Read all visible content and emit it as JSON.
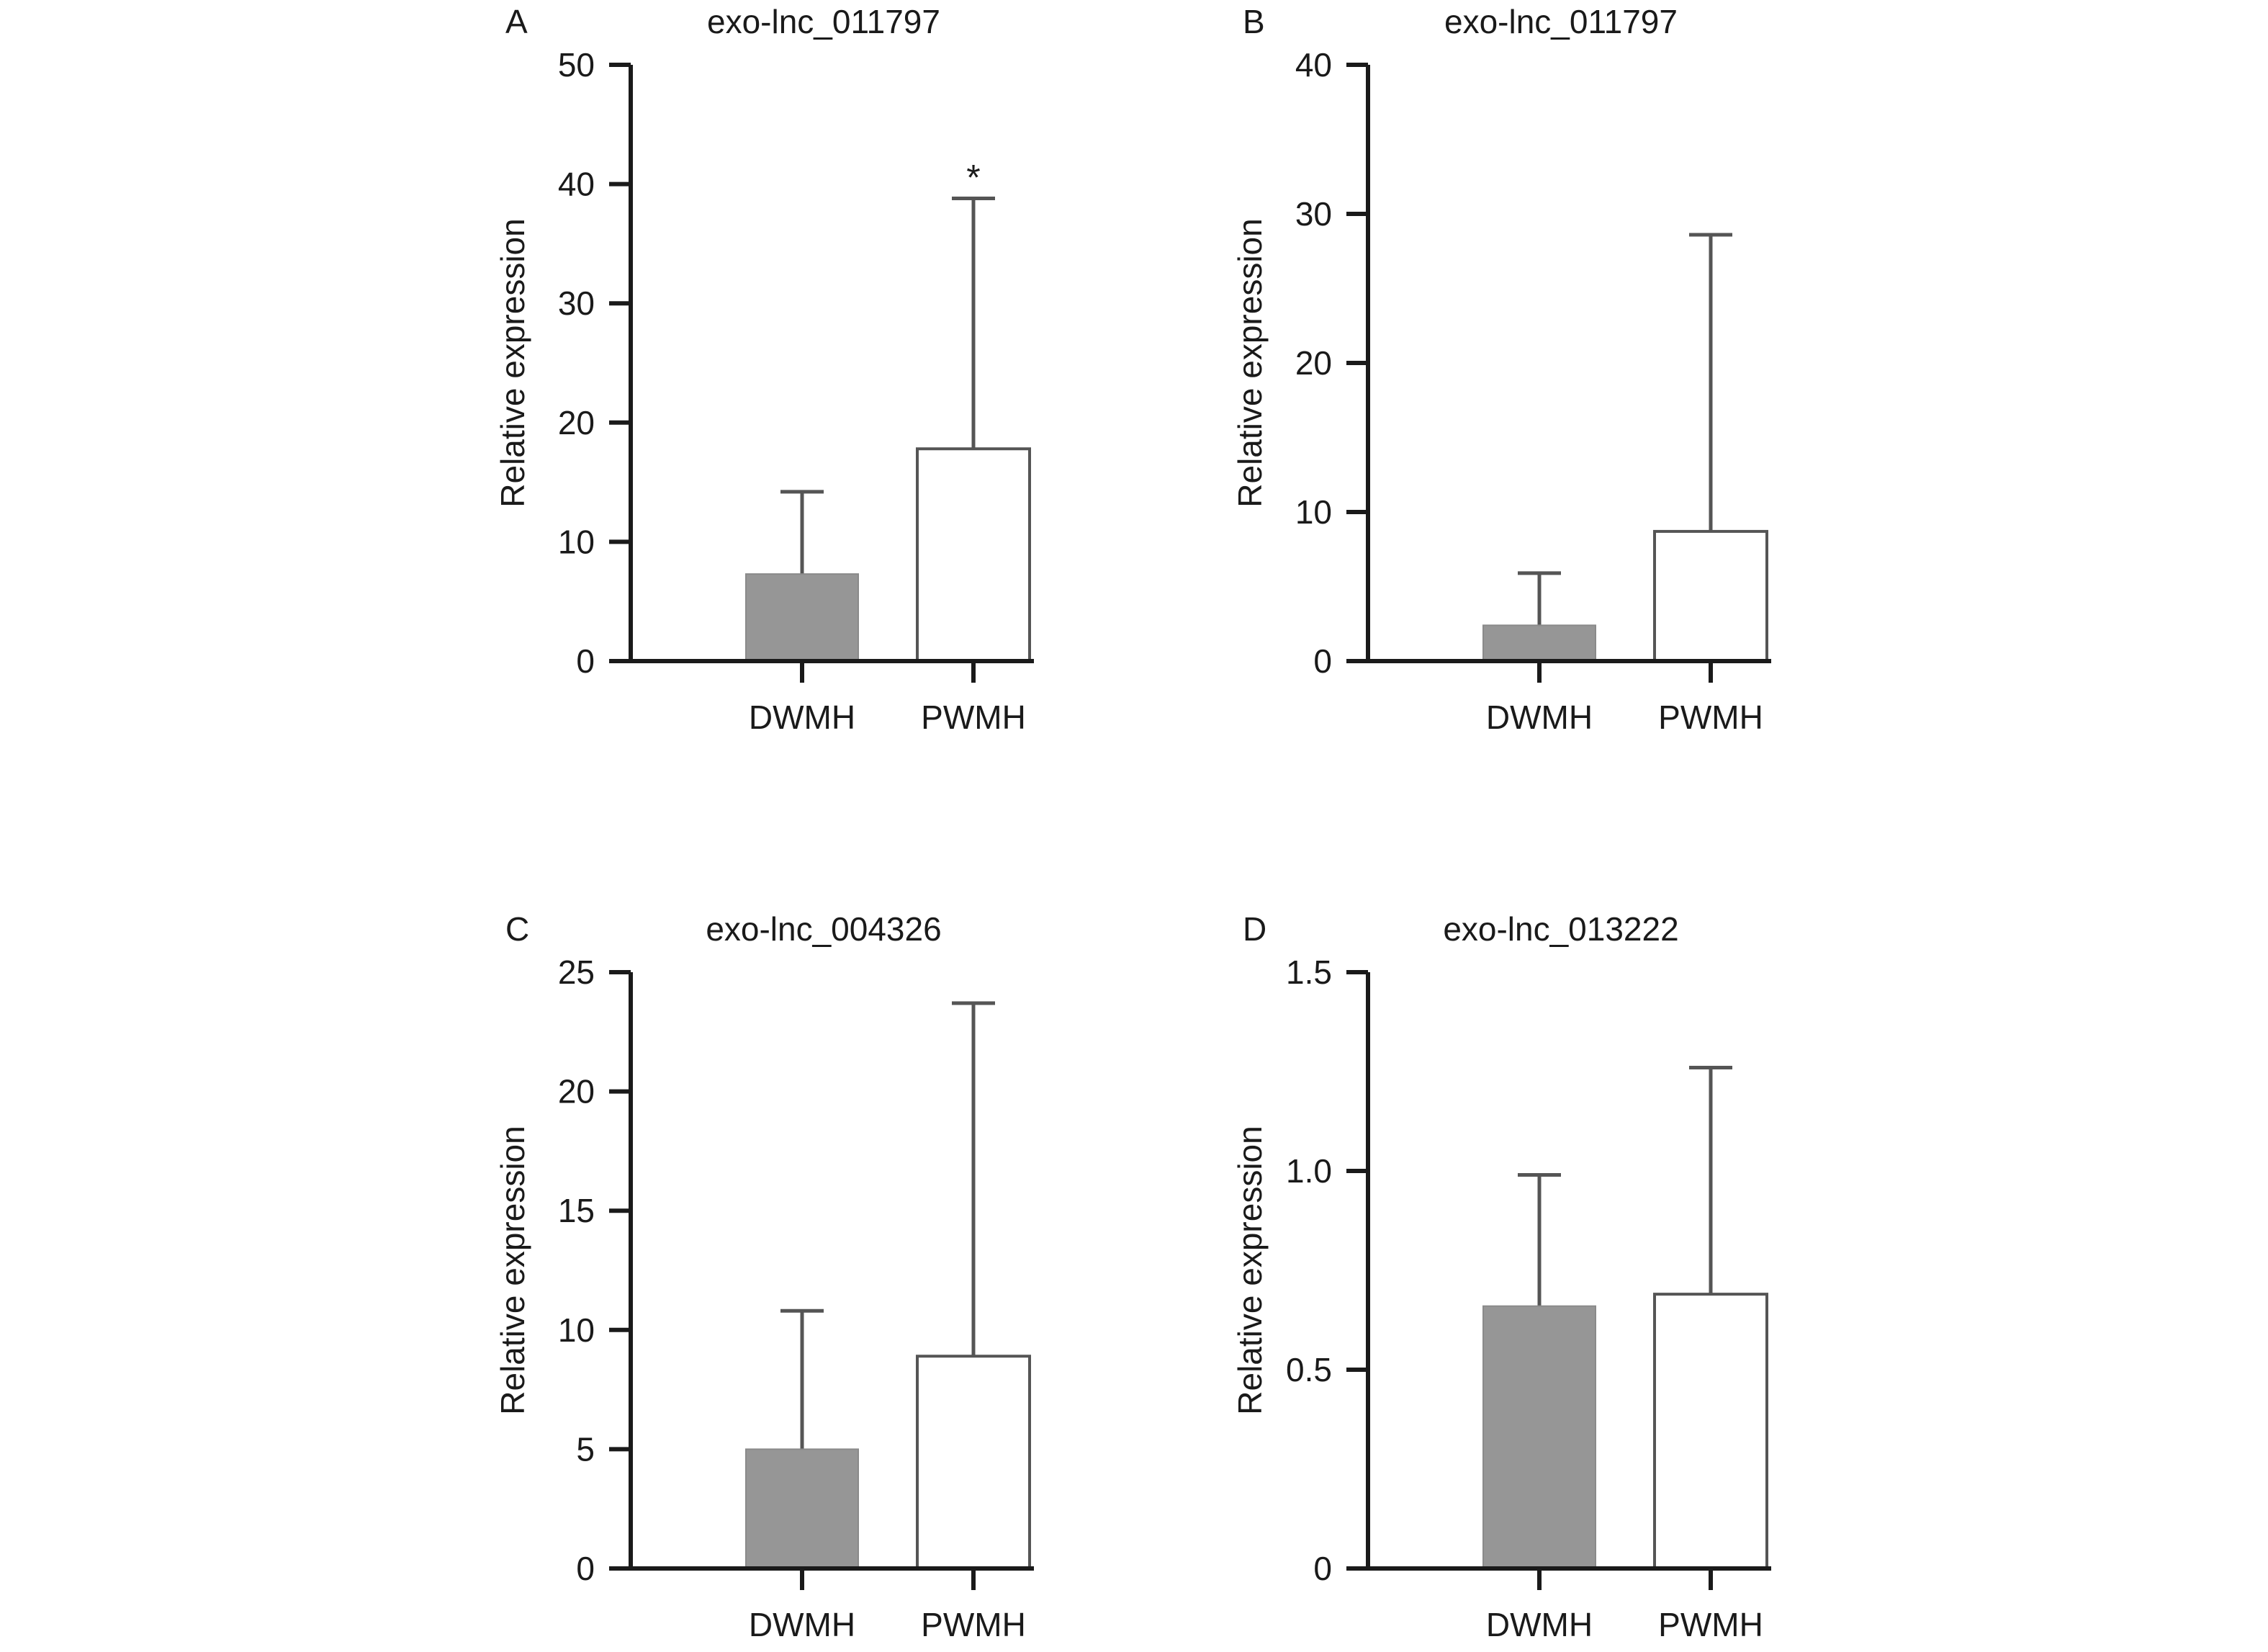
{
  "chart_data": [
    {
      "panel": "A",
      "type": "bar",
      "title": "exo-lnc_011797",
      "ylabel": "Relative expression",
      "ylim": [
        0,
        50
      ],
      "yticks": [
        0,
        10,
        20,
        30,
        40,
        50
      ],
      "categories": [
        "DWMH",
        "PWMH"
      ],
      "values": [
        7.3,
        17.8
      ],
      "error_upper": [
        14.2,
        38.8
      ],
      "fills": [
        "#969696",
        "#ffffff"
      ],
      "annotations": [
        {
          "category": "PWMH",
          "text": "*"
        }
      ]
    },
    {
      "panel": "B",
      "type": "bar",
      "title": "exo-lnc_011797",
      "ylabel": "Relative expression",
      "ylim": [
        0,
        40
      ],
      "yticks": [
        0,
        10,
        20,
        30,
        40
      ],
      "categories": [
        "DWMH",
        "PWMH"
      ],
      "values": [
        2.4,
        8.7
      ],
      "error_upper": [
        5.9,
        28.6
      ],
      "fills": [
        "#969696",
        "#ffffff"
      ],
      "annotations": []
    },
    {
      "panel": "C",
      "type": "bar",
      "title": "exo-lnc_004326",
      "ylabel": "Relative expression",
      "ylim": [
        0,
        25
      ],
      "yticks": [
        0,
        5,
        10,
        15,
        20,
        25
      ],
      "categories": [
        "DWMH",
        "PWMH"
      ],
      "values": [
        5.0,
        8.9
      ],
      "error_upper": [
        10.8,
        23.7
      ],
      "fills": [
        "#969696",
        "#ffffff"
      ],
      "annotations": []
    },
    {
      "panel": "D",
      "type": "bar",
      "title": "exo-lnc_013222",
      "ylabel": "Relative expression",
      "ylim": [
        0,
        1.5
      ],
      "yticks": [
        "0",
        "0.5",
        "1.0",
        "1.5"
      ],
      "categories": [
        "DWMH",
        "PWMH"
      ],
      "values": [
        0.66,
        0.69
      ],
      "error_upper": [
        0.99,
        1.26
      ],
      "fills": [
        "#969696",
        "#ffffff"
      ],
      "annotations": []
    }
  ]
}
